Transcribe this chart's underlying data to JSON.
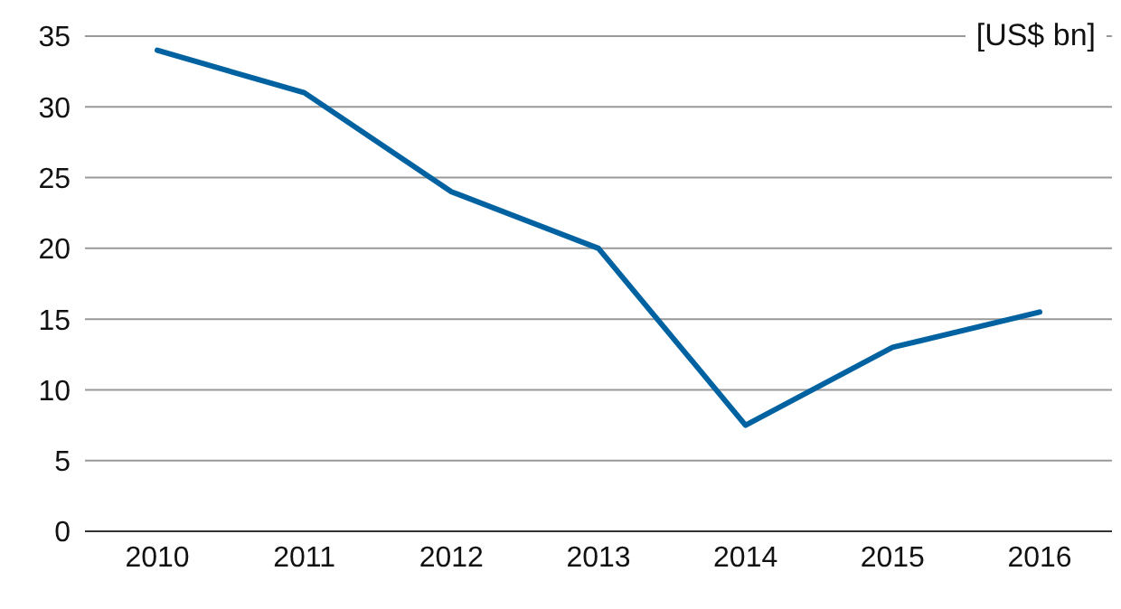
{
  "chart_data": {
    "type": "line",
    "ylabel": "[US$ bn]",
    "categories": [
      "2010",
      "2011",
      "2012",
      "2013",
      "2014",
      "2015",
      "2016"
    ],
    "series": [
      {
        "color": "#0062a0",
        "values": [
          34,
          31,
          24,
          20,
          7.5,
          13,
          15.5
        ]
      }
    ],
    "ylim": [
      0,
      35
    ],
    "yticks": [
      0,
      5,
      10,
      15,
      20,
      25,
      30,
      35
    ],
    "grid": "y",
    "legend": false,
    "marker": "none",
    "line_style": "solid"
  }
}
